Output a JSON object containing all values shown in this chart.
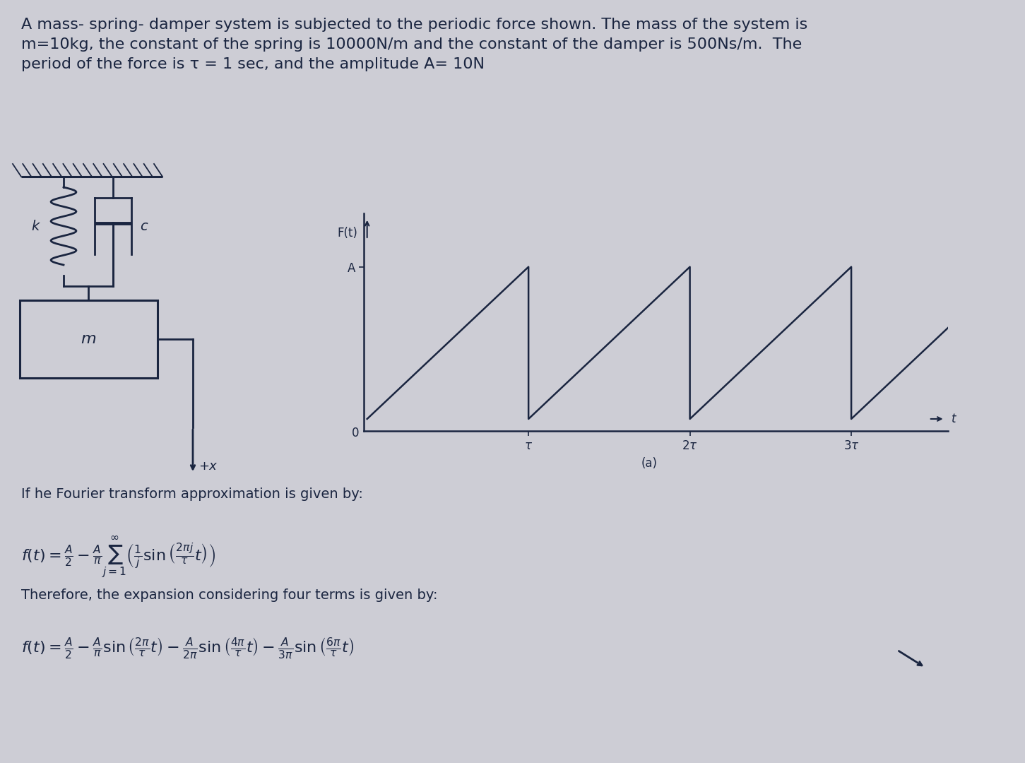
{
  "bg_color": "#cdcdd5",
  "text_color": "#1a2540",
  "line_color": "#1a2540",
  "title_line1": "A mass- spring- damper system is subjected to the periodic force shown. The mass of the system is",
  "title_line2": "m=10kg, the constant of the spring is 10000N/m and the constant of the damper is 500Ns/m.  The",
  "title_line3": "period of the force is τ = 1 sec, and the amplitude A= 10N",
  "fourier_text": "If he Fourier transform approximation is given by:",
  "formula1": "$f(t) = \\frac{A}{2} - \\frac{A}{\\pi} \\sum_{j=1}^{\\infty} \\left(\\frac{1}{j}\\sin\\left(\\frac{2\\pi j}{\\tau}t\\right)\\right)$",
  "therefore_text": "Therefore, the expansion considering four terms is given by:",
  "formula2": "$f(t) = \\frac{A}{2} - \\frac{A}{\\pi}\\sin\\left(\\frac{2\\pi}{\\tau}t\\right) - \\frac{A}{2\\pi}\\sin\\left(\\frac{4\\pi}{\\tau}t\\right) - \\frac{A}{3\\pi}\\sin\\left(\\frac{6\\pi}{\\tau}t\\right)$",
  "graph_sub_label": "(a)",
  "title_fontsize": 16,
  "text_fontsize": 14,
  "formula_fontsize": 14
}
